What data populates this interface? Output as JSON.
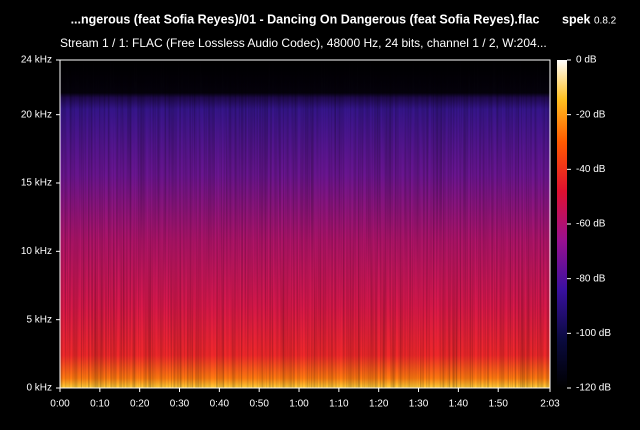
{
  "app": {
    "name": "spek",
    "version": "0.8.2"
  },
  "chart_data": {
    "type": "spectrogram",
    "title": "...ngerous (feat Sofia Reyes)/01 - Dancing On Dangerous (feat Sofia Reyes).flac",
    "subtitle": "Stream 1 / 1: FLAC (Free Lossless Audio Codec), 48000 Hz, 24 bits, channel 1 / 2, W:204...",
    "xlim": [
      0,
      123
    ],
    "xticks": [
      {
        "value": 0,
        "label": "0:00"
      },
      {
        "value": 10,
        "label": "0:10"
      },
      {
        "value": 20,
        "label": "0:20"
      },
      {
        "value": 30,
        "label": "0:30"
      },
      {
        "value": 40,
        "label": "0:40"
      },
      {
        "value": 50,
        "label": "0:50"
      },
      {
        "value": 60,
        "label": "1:00"
      },
      {
        "value": 70,
        "label": "1:10"
      },
      {
        "value": 80,
        "label": "1:20"
      },
      {
        "value": 90,
        "label": "1:30"
      },
      {
        "value": 100,
        "label": "1:40"
      },
      {
        "value": 110,
        "label": "1:50"
      },
      {
        "value": 123,
        "label": "2:03"
      }
    ],
    "ylim": [
      0,
      24
    ],
    "yticks": [
      {
        "value": 0,
        "label": "0 kHz"
      },
      {
        "value": 5,
        "label": "5 kHz"
      },
      {
        "value": 10,
        "label": "10 kHz"
      },
      {
        "value": 15,
        "label": "15 kHz"
      },
      {
        "value": 20,
        "label": "20 kHz"
      },
      {
        "value": 24,
        "label": "24 kHz"
      }
    ],
    "colorbar": {
      "lim": [
        -120,
        0
      ],
      "ticks": [
        {
          "value": 0,
          "label": "0 dB"
        },
        {
          "value": -20,
          "label": "-20 dB"
        },
        {
          "value": -40,
          "label": "-40 dB"
        },
        {
          "value": -60,
          "label": "-60 dB"
        },
        {
          "value": -80,
          "label": "-80 dB"
        },
        {
          "value": -100,
          "label": "-100 dB"
        },
        {
          "value": -120,
          "label": "-120 dB"
        }
      ]
    }
  }
}
